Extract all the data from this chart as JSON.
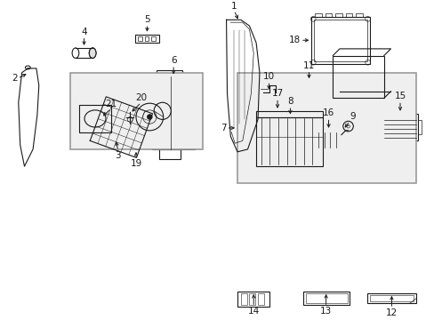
{
  "background_color": "#ffffff",
  "line_color": "#1a1a1a",
  "box_fill": "#efefef",
  "box_stroke": "#999999",
  "figsize": [
    4.89,
    3.6
  ],
  "dpi": 100
}
